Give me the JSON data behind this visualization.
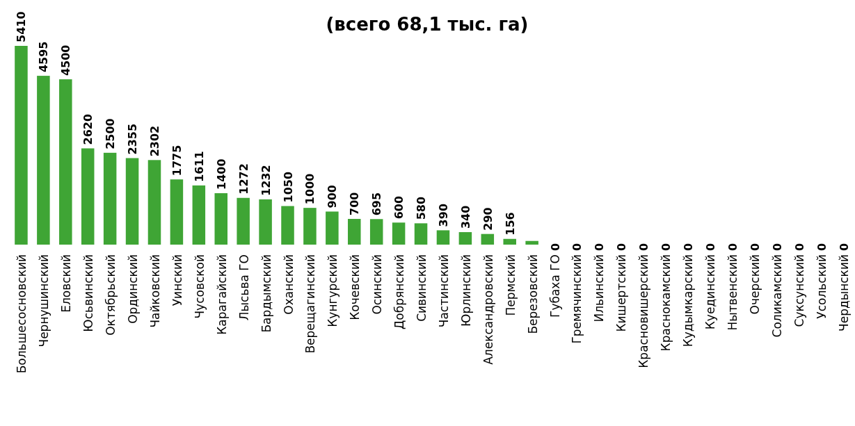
{
  "chart_data": {
    "type": "bar",
    "title": "(всего 68,1 тыс. га)",
    "categories": [
      "Большесосновский",
      "Чернушинский",
      "Еловский",
      "Юсьвинский",
      "Октябрьский",
      "Ординский",
      "Чайковский",
      "Уинский",
      "Чусовской",
      "Карагайский",
      "Лысьва ГО",
      "Бардымский",
      "Оханский",
      "Верещагинский",
      "Кунгурский",
      "Кочевский",
      "Осинский",
      "Добрянский",
      "Сивинский",
      "Частинский",
      "Юрлинский",
      "Александровский",
      "Пермский",
      "Березовский",
      "Губаха ГО",
      "Гремячинский",
      "Ильинский",
      "Кишертский",
      "Красновишерский",
      "Краснокамский",
      "Кудымкарский",
      "Куединский",
      "Нытвенский",
      "Очерский",
      "Соликамский",
      "Суксунский",
      "Усольский",
      "Чердынский"
    ],
    "values": [
      5410,
      4595,
      4500,
      2620,
      2500,
      2355,
      2302,
      1775,
      1611,
      1400,
      1272,
      1232,
      1050,
      1000,
      900,
      700,
      695,
      600,
      580,
      390,
      340,
      290,
      156,
      100,
      0,
      0,
      0,
      0,
      0,
      0,
      0,
      0,
      0,
      0,
      0,
      0,
      0,
      0
    ],
    "value_labels": [
      "5410",
      "4595",
      "4500",
      "2620",
      "2500",
      "2355",
      "2302",
      "1775",
      "1611",
      "1400",
      "1272",
      "1232",
      "1050",
      "1000",
      "900",
      "700",
      "695",
      "600",
      "580",
      "390",
      "340",
      "290",
      "156",
      null,
      "0",
      "0",
      "0",
      "0",
      "0",
      "0",
      "0",
      "0",
      "0",
      "0",
      "0",
      "0",
      "0",
      "0"
    ],
    "color": "#3fa535",
    "ylim": [
      0,
      5410
    ],
    "tick_labels": "x"
  }
}
